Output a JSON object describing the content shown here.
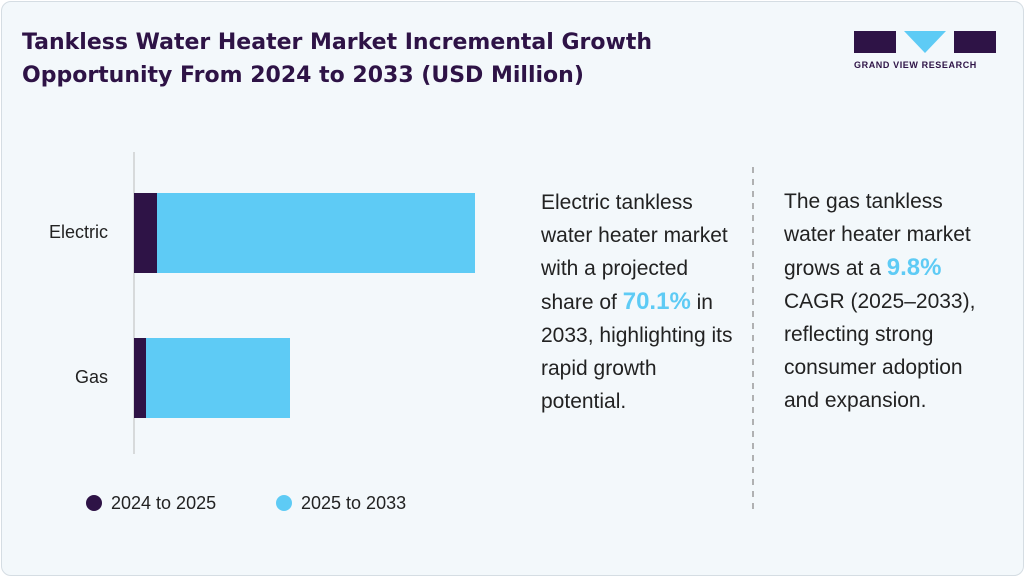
{
  "header": {
    "title": "Tankless Water Heater Market Incremental Growth Opportunity From 2024 to 2033 (USD Million)",
    "logo": "GRAND VIEW RESEARCH"
  },
  "chart_data": {
    "type": "bar",
    "orientation": "horizontal",
    "stacked": true,
    "categories": [
      "Electric",
      "Gas"
    ],
    "series": [
      {
        "name": "2024 to 2025",
        "color": "#2e1346",
        "values": [
          23,
          12
        ]
      },
      {
        "name": "2025 to 2033",
        "color": "#5ecbf5",
        "values": [
          318,
          144
        ]
      }
    ],
    "xlim": [
      0,
      400
    ]
  },
  "annotations": [
    {
      "before": "Electric tankless water heater market with a projected share of",
      "highlight": "70.1%",
      "after": "in 2033, highlighting its rapid growth potential."
    },
    {
      "before": "The gas tankless water heater market grows at a",
      "highlight": "9.8%",
      "after": "CAGR (2025–2033), reflecting strong consumer adoption and expansion."
    }
  ]
}
